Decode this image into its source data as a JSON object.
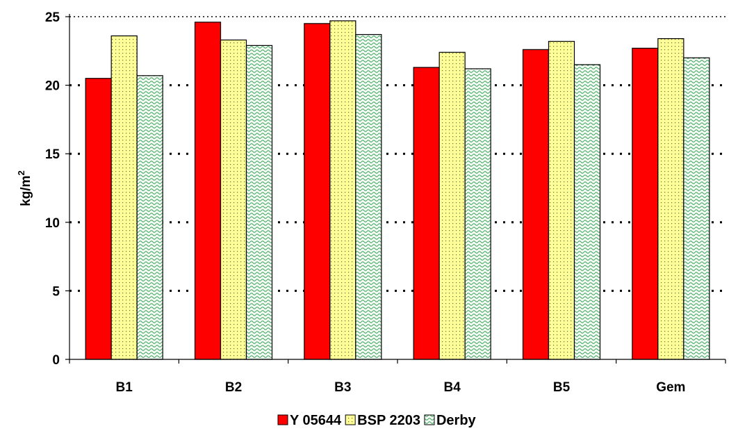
{
  "chart_data": {
    "type": "bar",
    "categories": [
      "B1",
      "B2",
      "B3",
      "B4",
      "B5",
      "Gem"
    ],
    "series": [
      {
        "name": "Y 05644",
        "values": [
          20.5,
          24.6,
          24.5,
          21.3,
          22.6,
          22.7
        ],
        "color": "#ff0000",
        "pattern": "solid"
      },
      {
        "name": "BSP 2203",
        "values": [
          23.6,
          23.3,
          24.7,
          22.4,
          23.2,
          23.4
        ],
        "color": "#ffff99",
        "pattern": "dots"
      },
      {
        "name": "Derby",
        "values": [
          20.7,
          22.9,
          23.7,
          21.2,
          21.5,
          22.0
        ],
        "color": "#e8f4ec",
        "pattern": "waves"
      }
    ],
    "ylabel": "kg/m",
    "ylabel_superscript": "2",
    "xlabel": "",
    "ylim": [
      0,
      25
    ],
    "yticks": [
      0,
      5,
      10,
      15,
      20,
      25
    ],
    "grid": "dotted-horizontal",
    "legend_position": "bottom"
  }
}
